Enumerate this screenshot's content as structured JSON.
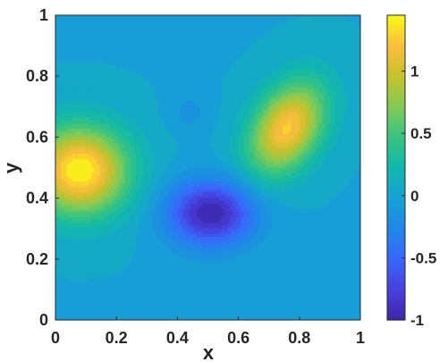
{
  "chart_data": {
    "type": "heatmap",
    "subtype": "filled-contour",
    "title": "",
    "xlabel": "x",
    "ylabel": "y",
    "xlim": [
      0,
      1
    ],
    "ylim": [
      0,
      1
    ],
    "x_ticks": [
      0,
      0.2,
      0.4,
      0.6,
      0.8,
      1
    ],
    "x_tick_labels": [
      "0",
      "0.2",
      "0.4",
      "0.6",
      "0.8",
      "1"
    ],
    "y_ticks": [
      0,
      0.2,
      0.4,
      0.6,
      0.8,
      1
    ],
    "y_tick_labels": [
      "0",
      "0.2",
      "0.4",
      "0.6",
      "0.8",
      "1"
    ],
    "colorbar": {
      "range": [
        -1,
        1.45
      ],
      "ticks": [
        -1,
        -0.5,
        0,
        0.5,
        1
      ],
      "tick_labels": [
        "-1",
        "-0.5",
        "0",
        "0.5",
        "1"
      ],
      "colormap": "parula",
      "placement": "right"
    },
    "background_value": 0,
    "features": [
      {
        "kind": "peak",
        "x": 0.08,
        "y": 0.49,
        "value": 1.45
      },
      {
        "kind": "peak",
        "x": 0.76,
        "y": 0.63,
        "value": 1.25
      },
      {
        "kind": "trough",
        "x": 0.51,
        "y": 0.35,
        "value": -1.0
      },
      {
        "kind": "trough",
        "x": 0.44,
        "y": 0.68,
        "value": -0.15
      }
    ],
    "grid": false
  }
}
